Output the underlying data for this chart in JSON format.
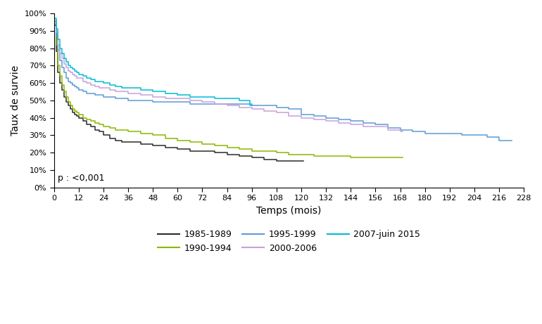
{
  "title": "",
  "xlabel": "Temps (mois)",
  "ylabel": "Taux de survie",
  "xlim": [
    0,
    228
  ],
  "ylim": [
    0,
    1.0
  ],
  "xticks": [
    0,
    12,
    24,
    36,
    48,
    60,
    72,
    84,
    96,
    108,
    120,
    132,
    144,
    156,
    168,
    180,
    192,
    204,
    216,
    228
  ],
  "yticks": [
    0.0,
    0.1,
    0.2,
    0.3,
    0.4,
    0.5,
    0.6,
    0.7,
    0.8,
    0.9,
    1.0
  ],
  "annotation": "p : <0,001",
  "background_color": "#ffffff",
  "colors": {
    "1985-1989": "#2b2b2b",
    "1990-1994": "#8db600",
    "1995-1999": "#5b9bd5",
    "2000-2006": "#c9a0dc",
    "2007-juin 2015": "#00bcd4"
  },
  "curves": {
    "1985-1989": {
      "x": [
        0,
        0.3,
        1,
        2,
        3,
        4,
        5,
        6,
        7,
        8,
        9,
        10,
        11,
        12,
        14,
        16,
        18,
        20,
        22,
        24,
        27,
        30,
        33,
        36,
        42,
        48,
        54,
        60,
        66,
        72,
        78,
        84,
        90,
        96,
        102,
        108,
        114,
        120,
        121
      ],
      "y": [
        1.0,
        0.93,
        0.78,
        0.66,
        0.6,
        0.56,
        0.52,
        0.49,
        0.47,
        0.45,
        0.43,
        0.42,
        0.41,
        0.4,
        0.38,
        0.36,
        0.35,
        0.33,
        0.32,
        0.3,
        0.28,
        0.27,
        0.26,
        0.26,
        0.25,
        0.24,
        0.23,
        0.22,
        0.21,
        0.21,
        0.2,
        0.19,
        0.18,
        0.17,
        0.16,
        0.15,
        0.15,
        0.15,
        0.15
      ]
    },
    "1990-1994": {
      "x": [
        0,
        0.3,
        1,
        2,
        3,
        4,
        5,
        6,
        7,
        8,
        9,
        10,
        11,
        12,
        14,
        16,
        18,
        20,
        22,
        24,
        27,
        30,
        33,
        36,
        42,
        48,
        54,
        60,
        66,
        72,
        78,
        84,
        90,
        96,
        102,
        108,
        114,
        120,
        126,
        132,
        138,
        144,
        150,
        156,
        162,
        168,
        169
      ],
      "y": [
        1.0,
        0.94,
        0.82,
        0.7,
        0.64,
        0.59,
        0.55,
        0.52,
        0.49,
        0.47,
        0.45,
        0.44,
        0.43,
        0.42,
        0.4,
        0.39,
        0.38,
        0.37,
        0.36,
        0.35,
        0.34,
        0.33,
        0.33,
        0.32,
        0.31,
        0.3,
        0.28,
        0.27,
        0.26,
        0.25,
        0.24,
        0.23,
        0.22,
        0.21,
        0.21,
        0.2,
        0.19,
        0.19,
        0.18,
        0.18,
        0.18,
        0.17,
        0.17,
        0.17,
        0.17,
        0.17,
        0.17
      ]
    },
    "1995-1999": {
      "x": [
        0,
        0.3,
        1,
        2,
        3,
        4,
        5,
        6,
        7,
        8,
        9,
        10,
        11,
        12,
        14,
        16,
        18,
        20,
        22,
        24,
        27,
        30,
        33,
        36,
        42,
        48,
        54,
        60,
        66,
        72,
        78,
        84,
        90,
        96,
        102,
        108,
        114,
        120,
        126,
        132,
        138,
        144,
        150,
        156,
        162,
        168,
        174,
        180,
        186,
        192,
        198,
        204,
        210,
        216,
        222
      ],
      "y": [
        1.0,
        0.95,
        0.87,
        0.79,
        0.73,
        0.69,
        0.66,
        0.63,
        0.61,
        0.6,
        0.59,
        0.58,
        0.57,
        0.56,
        0.55,
        0.54,
        0.54,
        0.53,
        0.53,
        0.52,
        0.52,
        0.51,
        0.51,
        0.5,
        0.5,
        0.49,
        0.49,
        0.49,
        0.48,
        0.48,
        0.48,
        0.48,
        0.48,
        0.47,
        0.47,
        0.46,
        0.45,
        0.42,
        0.41,
        0.4,
        0.39,
        0.38,
        0.37,
        0.36,
        0.34,
        0.33,
        0.32,
        0.31,
        0.31,
        0.31,
        0.3,
        0.3,
        0.29,
        0.27,
        0.27
      ]
    },
    "2000-2006": {
      "x": [
        0,
        0.3,
        1,
        2,
        3,
        4,
        5,
        6,
        7,
        8,
        9,
        10,
        11,
        12,
        14,
        16,
        18,
        20,
        22,
        24,
        27,
        30,
        33,
        36,
        42,
        48,
        54,
        60,
        66,
        72,
        78,
        84,
        90,
        96,
        102,
        108,
        114,
        120,
        126,
        132,
        138,
        144,
        150,
        156,
        162,
        168,
        169
      ],
      "y": [
        1.0,
        0.96,
        0.89,
        0.82,
        0.77,
        0.74,
        0.71,
        0.69,
        0.67,
        0.66,
        0.65,
        0.64,
        0.63,
        0.63,
        0.61,
        0.6,
        0.59,
        0.58,
        0.57,
        0.57,
        0.56,
        0.55,
        0.55,
        0.54,
        0.53,
        0.52,
        0.51,
        0.51,
        0.5,
        0.49,
        0.48,
        0.47,
        0.46,
        0.45,
        0.44,
        0.43,
        0.41,
        0.4,
        0.39,
        0.38,
        0.37,
        0.36,
        0.35,
        0.35,
        0.33,
        0.32,
        0.32
      ]
    },
    "2007-juin 2015": {
      "x": [
        0,
        0.3,
        1,
        2,
        3,
        4,
        5,
        6,
        7,
        8,
        9,
        10,
        11,
        12,
        14,
        16,
        18,
        20,
        22,
        24,
        27,
        30,
        33,
        36,
        42,
        48,
        54,
        60,
        66,
        72,
        78,
        84,
        90,
        95,
        96
      ],
      "y": [
        1.0,
        0.97,
        0.91,
        0.85,
        0.8,
        0.77,
        0.74,
        0.72,
        0.7,
        0.69,
        0.68,
        0.67,
        0.66,
        0.65,
        0.64,
        0.63,
        0.62,
        0.61,
        0.61,
        0.6,
        0.59,
        0.58,
        0.57,
        0.57,
        0.56,
        0.55,
        0.54,
        0.53,
        0.52,
        0.52,
        0.51,
        0.51,
        0.5,
        0.47,
        0.47
      ]
    }
  },
  "legend_entries": [
    {
      "label": "1985-1989",
      "color": "#2b2b2b"
    },
    {
      "label": "1990-1994",
      "color": "#8db600"
    },
    {
      "label": "1995-1999",
      "color": "#5b9bd5"
    },
    {
      "label": "2000-2006",
      "color": "#c9a0dc"
    },
    {
      "label": "2007-juin 2015",
      "color": "#00bcd4"
    }
  ]
}
